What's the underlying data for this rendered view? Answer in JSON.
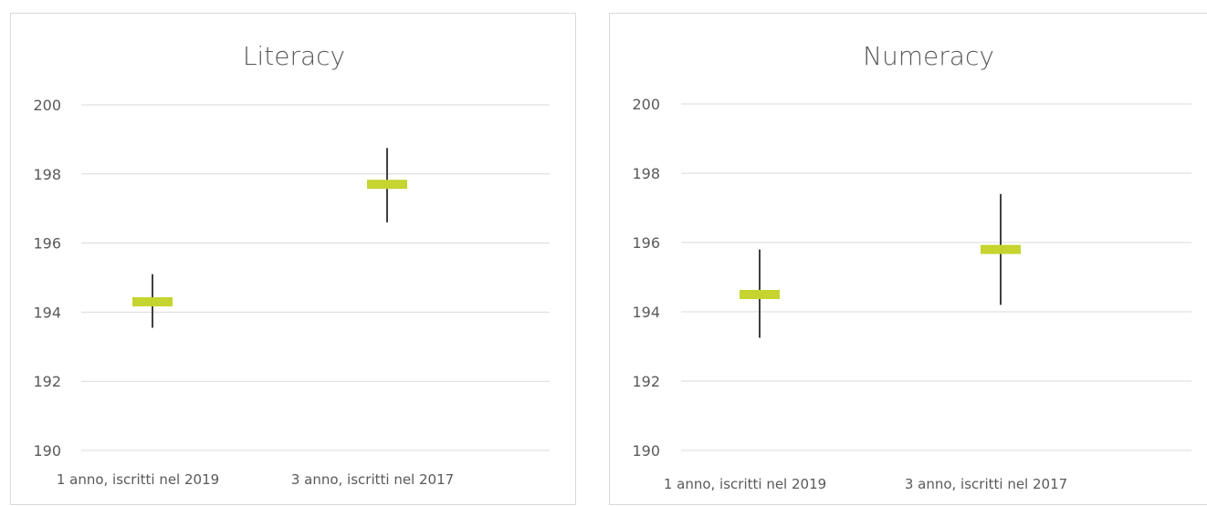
{
  "colors": {
    "marker": "#c5d42f",
    "whisker": "#404040",
    "grid": "#d9d9d9",
    "text": "#595959"
  },
  "chart_data": [
    {
      "type": "scatter",
      "title": "Literacy",
      "categories": [
        "1 anno, iscritti nel 2019",
        "3 anno, iscritti nel 2017"
      ],
      "series": [
        {
          "values": [
            194.3,
            197.7
          ],
          "low": [
            193.55,
            196.6
          ],
          "high": [
            195.1,
            198.75
          ]
        }
      ],
      "ylim": [
        190,
        200
      ],
      "yticks": [
        "190",
        "192",
        "194",
        "196",
        "198",
        "200"
      ],
      "grid": true,
      "legend": "none"
    },
    {
      "type": "scatter",
      "title": "Numeracy",
      "categories": [
        "1 anno, iscritti nel 2019",
        "3 anno, iscritti nel 2017"
      ],
      "series": [
        {
          "values": [
            194.5,
            195.8
          ],
          "low": [
            193.25,
            194.2
          ],
          "high": [
            195.8,
            197.4
          ]
        }
      ],
      "ylim": [
        190,
        200
      ],
      "yticks": [
        "190",
        "192",
        "194",
        "196",
        "198",
        "200"
      ],
      "grid": true,
      "legend": "none"
    }
  ]
}
